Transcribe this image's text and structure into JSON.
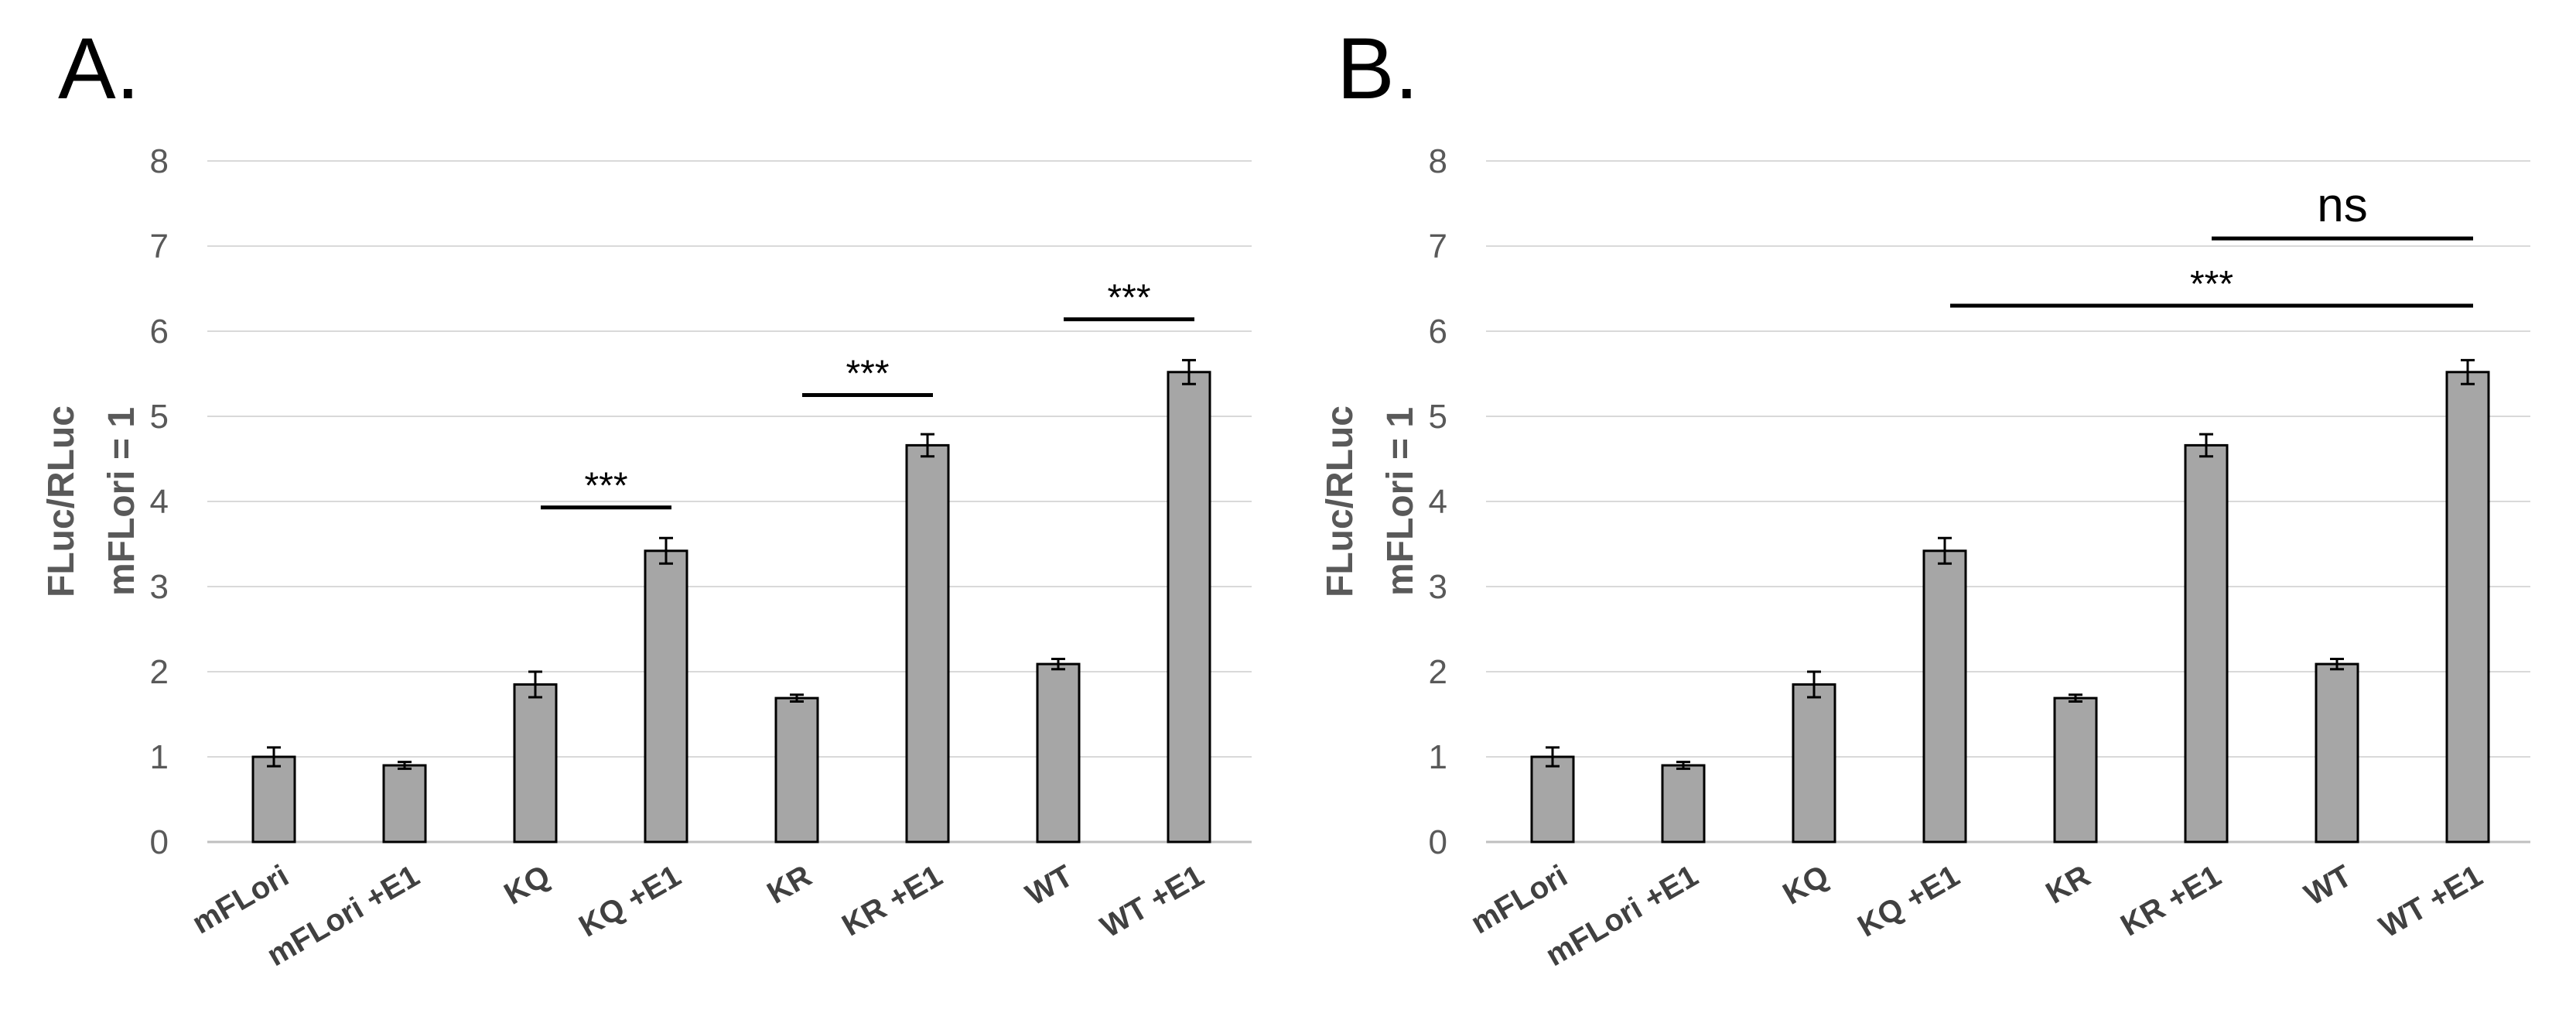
{
  "chart_data": [
    {
      "panel": "A.",
      "type": "bar",
      "title": "",
      "xlabel": "",
      "ylabel": [
        "FLuc/RLuc",
        "mFLori = 1"
      ],
      "ylim": [
        0,
        8
      ],
      "yticks": [
        0,
        1,
        2,
        3,
        4,
        5,
        6,
        7,
        8
      ],
      "grid": true,
      "bar_color": "#a6a6a6",
      "categories": [
        "mFLori",
        "mFLori +E1",
        "KQ",
        "KQ +E1",
        "KR",
        "KR +E1",
        "WT",
        "WT +E1"
      ],
      "values": [
        1.0,
        0.9,
        1.85,
        3.42,
        1.69,
        4.66,
        2.09,
        5.52
      ],
      "errors": [
        0.11,
        0.04,
        0.15,
        0.15,
        0.04,
        0.13,
        0.06,
        0.14
      ],
      "annotations": [
        {
          "label": "***",
          "from": "KQ",
          "to": "KQ +E1",
          "y": 3.93
        },
        {
          "label": "***",
          "from": "KR",
          "to": "KR +E1",
          "y": 5.25
        },
        {
          "label": "***",
          "from": "WT",
          "to": "WT +E1",
          "y": 6.14
        }
      ]
    },
    {
      "panel": "B.",
      "type": "bar",
      "title": "",
      "xlabel": "",
      "ylabel": [
        "FLuc/RLuc",
        "mFLori = 1"
      ],
      "ylim": [
        0,
        8
      ],
      "yticks": [
        0,
        1,
        2,
        3,
        4,
        5,
        6,
        7,
        8
      ],
      "grid": true,
      "bar_color": "#a6a6a6",
      "categories": [
        "mFLori",
        "mFLori +E1",
        "KQ",
        "KQ +E1",
        "KR",
        "KR +E1",
        "WT",
        "WT +E1"
      ],
      "values": [
        1.0,
        0.9,
        1.85,
        3.42,
        1.69,
        4.66,
        2.09,
        5.52
      ],
      "errors": [
        0.11,
        0.04,
        0.15,
        0.15,
        0.04,
        0.13,
        0.06,
        0.14
      ],
      "annotations": [
        {
          "label": "***",
          "from": "KQ +E1",
          "to": "WT +E1",
          "y": 6.3
        },
        {
          "label": "ns",
          "from": "KR +E1",
          "to": "WT +E1",
          "y": 7.09
        }
      ]
    }
  ]
}
